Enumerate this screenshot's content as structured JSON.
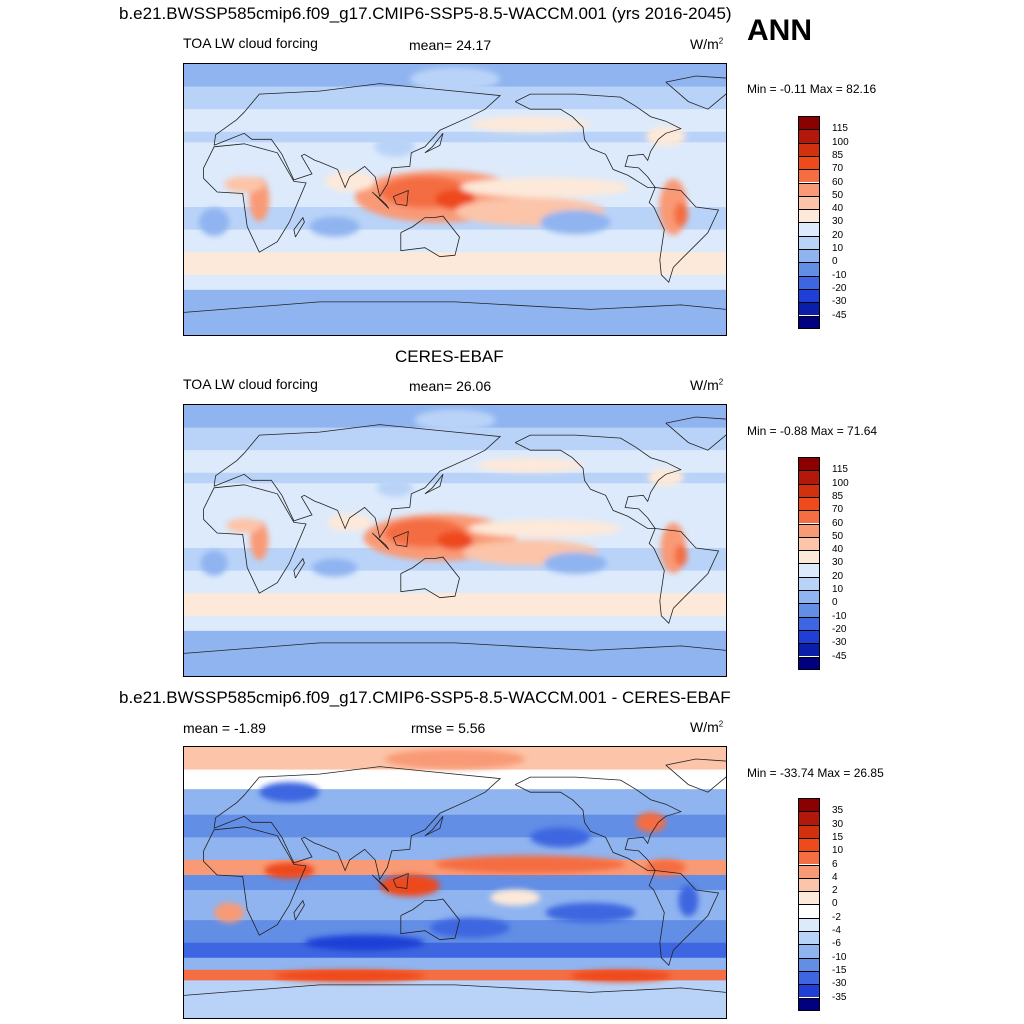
{
  "header": {
    "title": "b.e21.BWSSP585cmip6.f09_g17.CMIP6-SSP5-8.5-WACCM.001 (yrs 2016-2045)",
    "season": "ANN"
  },
  "panels": [
    {
      "id": "model",
      "heading": "",
      "left_label": "TOA LW cloud forcing",
      "center_label": "mean=  24.17",
      "units_base": "W/m",
      "units_exp": "2",
      "minmax": "Min =  -0.11 Max =  82.16",
      "scheme": "abs",
      "colorbar_labels": [
        "115",
        "100",
        "85",
        "70",
        "60",
        "50",
        "40",
        "30",
        "20",
        "10",
        "0",
        "-10",
        "-20",
        "-30",
        "-45"
      ]
    },
    {
      "id": "obs",
      "heading": "CERES-EBAF",
      "left_label": "TOA LW cloud forcing",
      "center_label": "mean=  26.06",
      "units_base": "W/m",
      "units_exp": "2",
      "minmax": "Min =  -0.88 Max =  71.64",
      "scheme": "abs",
      "colorbar_labels": [
        "115",
        "100",
        "85",
        "70",
        "60",
        "50",
        "40",
        "30",
        "20",
        "10",
        "0",
        "-10",
        "-20",
        "-30",
        "-45"
      ]
    },
    {
      "id": "diff",
      "heading": "b.e21.BWSSP585cmip6.f09_g17.CMIP6-SSP5-8.5-WACCM.001 - CERES-EBAF",
      "left_label": "mean =  -1.89",
      "center_label": "rmse =   5.56",
      "units_base": "W/m",
      "units_exp": "2",
      "minmax": "Min = -33.74 Max =  26.85",
      "scheme": "diff",
      "colorbar_labels": [
        "35",
        "30",
        "15",
        "10",
        "6",
        "4",
        "2",
        "0",
        "-2",
        "-4",
        "-6",
        "-10",
        "-15",
        "-30",
        "-35"
      ]
    }
  ],
  "colors": {
    "abs": [
      "#8b0000",
      "#b2190a",
      "#d1310f",
      "#ee4a1c",
      "#f46d43",
      "#f99a76",
      "#fcc4a8",
      "#fde9d9",
      "#dceafc",
      "#b9d3f8",
      "#8fb4f0",
      "#628ee6",
      "#3e66e0",
      "#1f3fd6",
      "#0a1eaa",
      "#000080"
    ],
    "diff": [
      "#8b0000",
      "#b2190a",
      "#d1310f",
      "#ee4a1c",
      "#f46d43",
      "#f99a76",
      "#fcc4a8",
      "#fde9d9",
      "#ffffff",
      "#dceafc",
      "#b9d3f8",
      "#8fb4f0",
      "#628ee6",
      "#3e66e0",
      "#1f3fd6",
      "#000080"
    ]
  }
}
